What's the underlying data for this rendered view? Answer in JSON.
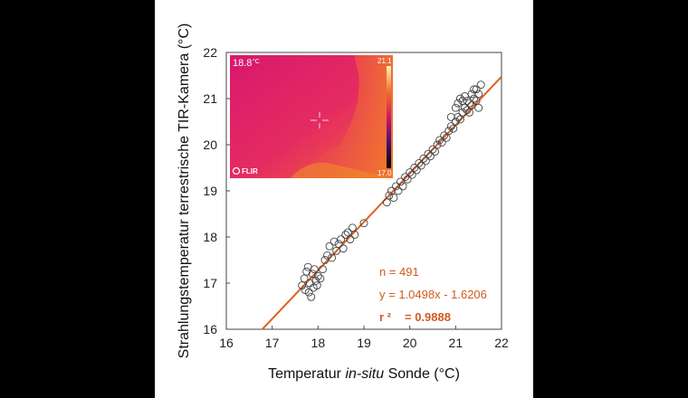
{
  "colors": {
    "background": "#000000",
    "panel": "#ffffff",
    "regression_line": "#e0601a",
    "stats_text": "#d05a1e",
    "marker_stroke": "#444444"
  },
  "chart_data": {
    "type": "scatter",
    "xlabel_parts": [
      "Temperatur ",
      "in-situ",
      " Sonde (°C)"
    ],
    "ylabel": "Strahlungstemperatur terrestrische TIR-Kamera (°C)",
    "xlim": [
      16,
      22
    ],
    "ylim": [
      16,
      22
    ],
    "x_ticks": [
      "16",
      "17",
      "18",
      "19",
      "20",
      "21",
      "22"
    ],
    "y_ticks": [
      "16",
      "17",
      "18",
      "19",
      "20",
      "21",
      "22"
    ],
    "grid": false,
    "regression": {
      "slope": 1.0498,
      "intercept": -1.6206
    },
    "stats": {
      "n": "n = 491",
      "equation": "y = 1.0498x - 1.6206",
      "r2_label": "r ²",
      "r2_value": "= 0.9888"
    },
    "points": [
      [
        17.65,
        16.95
      ],
      [
        17.7,
        17.1
      ],
      [
        17.72,
        16.85
      ],
      [
        17.75,
        17.25
      ],
      [
        17.78,
        17.35
      ],
      [
        17.8,
        16.8
      ],
      [
        17.82,
        17.0
      ],
      [
        17.85,
        16.7
      ],
      [
        17.88,
        17.2
      ],
      [
        17.9,
        16.9
      ],
      [
        17.92,
        17.3
      ],
      [
        17.95,
        17.05
      ],
      [
        17.98,
        16.95
      ],
      [
        18.0,
        17.15
      ],
      [
        18.05,
        17.1
      ],
      [
        18.1,
        17.3
      ],
      [
        18.15,
        17.5
      ],
      [
        18.2,
        17.6
      ],
      [
        18.25,
        17.8
      ],
      [
        18.3,
        17.55
      ],
      [
        18.35,
        17.9
      ],
      [
        18.4,
        17.7
      ],
      [
        18.45,
        17.85
      ],
      [
        18.5,
        17.95
      ],
      [
        18.55,
        17.75
      ],
      [
        18.6,
        18.05
      ],
      [
        18.65,
        18.1
      ],
      [
        18.7,
        17.95
      ],
      [
        18.75,
        18.2
      ],
      [
        18.8,
        18.05
      ],
      [
        19.0,
        18.3
      ],
      [
        19.5,
        18.75
      ],
      [
        19.55,
        18.9
      ],
      [
        19.6,
        19.0
      ],
      [
        19.65,
        18.85
      ],
      [
        19.7,
        19.1
      ],
      [
        19.75,
        19.0
      ],
      [
        19.8,
        19.2
      ],
      [
        19.85,
        19.1
      ],
      [
        19.9,
        19.3
      ],
      [
        19.95,
        19.25
      ],
      [
        20.0,
        19.4
      ],
      [
        20.05,
        19.35
      ],
      [
        20.1,
        19.5
      ],
      [
        20.15,
        19.45
      ],
      [
        20.2,
        19.6
      ],
      [
        20.25,
        19.55
      ],
      [
        20.3,
        19.7
      ],
      [
        20.35,
        19.65
      ],
      [
        20.4,
        19.8
      ],
      [
        20.45,
        19.75
      ],
      [
        20.5,
        19.9
      ],
      [
        20.55,
        19.85
      ],
      [
        20.6,
        20.0
      ],
      [
        20.65,
        20.1
      ],
      [
        20.7,
        20.05
      ],
      [
        20.75,
        20.2
      ],
      [
        20.8,
        20.15
      ],
      [
        20.85,
        20.3
      ],
      [
        20.9,
        20.4
      ],
      [
        20.95,
        20.35
      ],
      [
        21.0,
        20.5
      ],
      [
        21.05,
        20.6
      ],
      [
        21.1,
        20.55
      ],
      [
        21.15,
        20.7
      ],
      [
        21.2,
        20.8
      ],
      [
        21.25,
        20.75
      ],
      [
        21.3,
        20.9
      ],
      [
        21.35,
        20.85
      ],
      [
        21.4,
        21.0
      ],
      [
        21.45,
        20.95
      ],
      [
        21.5,
        21.1
      ],
      [
        21.05,
        20.9
      ],
      [
        21.1,
        21.0
      ],
      [
        21.2,
        21.05
      ],
      [
        21.3,
        20.7
      ],
      [
        21.4,
        21.2
      ],
      [
        21.5,
        20.8
      ],
      [
        21.55,
        21.3
      ],
      [
        21.45,
        21.2
      ],
      [
        21.35,
        21.1
      ],
      [
        21.25,
        20.95
      ],
      [
        21.0,
        20.8
      ],
      [
        20.9,
        20.6
      ],
      [
        21.15,
        20.95
      ]
    ]
  },
  "thermal_inset": {
    "temp_readout": "18.8",
    "temp_unit": "°C",
    "scale_max": "21.1",
    "scale_min": "17.0",
    "brand": "FLIR"
  }
}
